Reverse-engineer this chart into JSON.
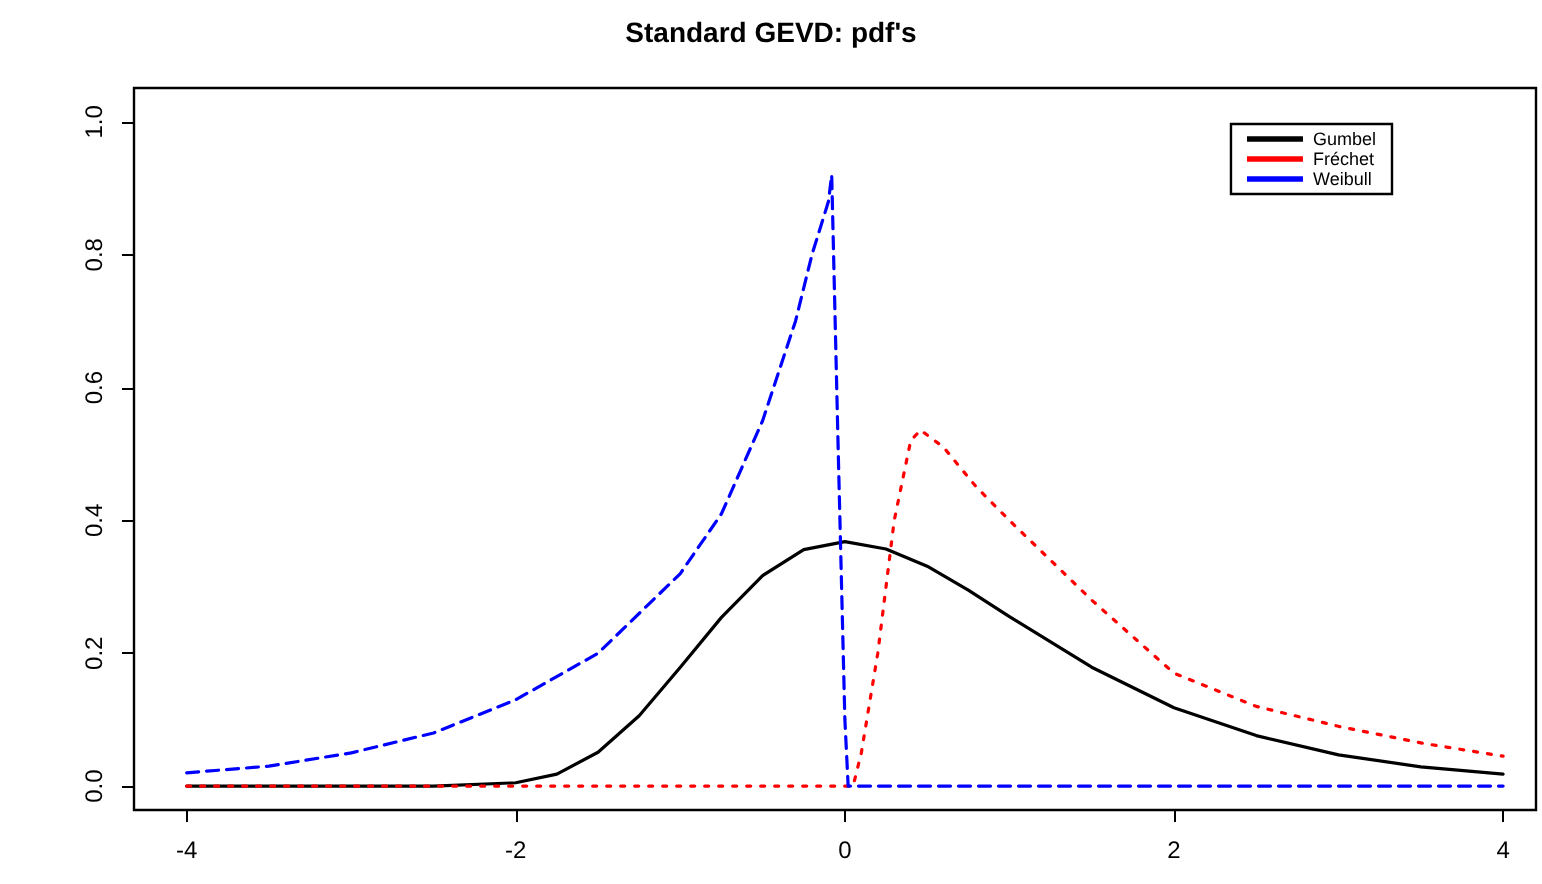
{
  "chart_data": {
    "type": "line",
    "title": "Standard GEVD: pdf's",
    "xlim": [
      -4.32,
      4.2
    ],
    "xticks": [
      -4,
      -2,
      0,
      2,
      4
    ],
    "ylim": [
      -0.036,
      1.051
    ],
    "yticks": [
      {
        "value": 0,
        "label": "0.0"
      },
      {
        "value": 0.2,
        "label": "0.2"
      },
      {
        "value": 0.4,
        "label": "0.4"
      },
      {
        "value": 0.6,
        "label": "0.6"
      },
      {
        "value": 0.8,
        "label": "0.8"
      },
      {
        "value": 1,
        "label": "1.0"
      }
    ],
    "grid": false,
    "legend": "top right",
    "marker": "none",
    "series": [
      {
        "name": "Gumbel",
        "color": "#000000",
        "line_style": "solid",
        "x": [
          -4,
          -3,
          -2.5,
          -2,
          -1.75,
          -1.5,
          -1.25,
          -1,
          -0.75,
          -0.5,
          -0.25,
          0,
          0.25,
          0.5,
          0.75,
          1,
          1.5,
          2,
          2.5,
          3,
          3.5,
          4
        ],
        "values": [
          0,
          0,
          0,
          0.005,
          0.018,
          0.051,
          0.106,
          0.179,
          0.254,
          0.317,
          0.356,
          0.368,
          0.357,
          0.331,
          0.295,
          0.255,
          0.179,
          0.118,
          0.076,
          0.047,
          0.029,
          0.018
        ]
      },
      {
        "name": "Fréchet",
        "color": "#ff0000",
        "line_style": "dotted",
        "x": [
          -4,
          0.05,
          0.1,
          0.2,
          0.3,
          0.4,
          0.46,
          0.6,
          0.8,
          1,
          1.5,
          2,
          2.5,
          3,
          3.5,
          4
        ],
        "values": [
          0,
          0,
          0.05,
          0.2,
          0.4,
          0.52,
          0.536,
          0.51,
          0.45,
          0.4,
          0.28,
          0.17,
          0.12,
          0.09,
          0.065,
          0.045
        ]
      },
      {
        "name": "Weibull",
        "color": "#0000ff",
        "line_style": "dashed",
        "x": [
          -4,
          -3.5,
          -3,
          -2.5,
          -2,
          -1.5,
          -1,
          -0.75,
          -0.5,
          -0.3,
          -0.2,
          -0.1,
          -0.08,
          -0.04,
          0,
          0.02,
          1,
          2,
          3,
          4
        ],
        "values": [
          0.02,
          0.03,
          0.05,
          0.08,
          0.13,
          0.2,
          0.32,
          0.41,
          0.55,
          0.7,
          0.8,
          0.88,
          0.92,
          0.5,
          0.1,
          0,
          0,
          0,
          0,
          0
        ]
      }
    ]
  }
}
